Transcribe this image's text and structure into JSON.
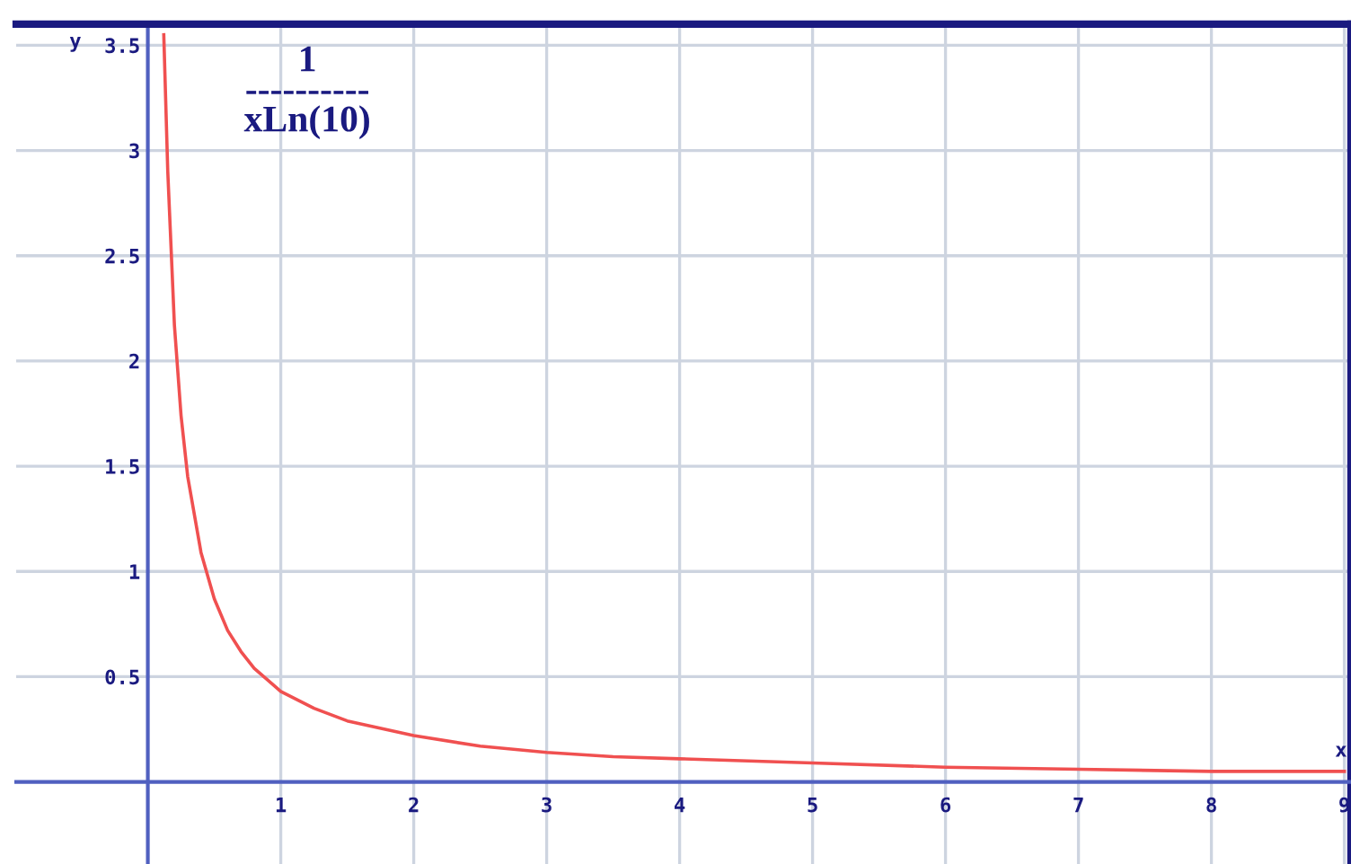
{
  "chart_data": {
    "type": "line",
    "title": "1\n----------\nxLn(10)",
    "xlabel": "x",
    "ylabel": "y",
    "x": [
      0.12,
      0.15,
      0.2,
      0.25,
      0.3,
      0.4,
      0.5,
      0.6,
      0.7,
      0.8,
      1,
      1.25,
      1.5,
      2,
      2.5,
      3,
      3.5,
      4,
      5,
      6,
      7,
      8,
      9
    ],
    "series": [
      {
        "color": "#f05050",
        "values": [
          3.55,
          2.9,
          2.17,
          1.74,
          1.45,
          1.09,
          0.87,
          0.72,
          0.62,
          0.54,
          0.43,
          0.35,
          0.29,
          0.22,
          0.17,
          0.14,
          0.12,
          0.11,
          0.09,
          0.07,
          0.06,
          0.05,
          0.05
        ]
      }
    ],
    "xlim": [
      -0.99,
      9.05
    ],
    "ylim": [
      -0.39,
      3.6
    ],
    "xticks": [
      1,
      2,
      3,
      4,
      5,
      6,
      7,
      8,
      9
    ],
    "yticks": [
      0.5,
      1,
      1.5,
      2,
      2.5,
      3,
      3.5
    ],
    "grid": true,
    "legend": false,
    "marker": "none",
    "line_style": "solid"
  }
}
